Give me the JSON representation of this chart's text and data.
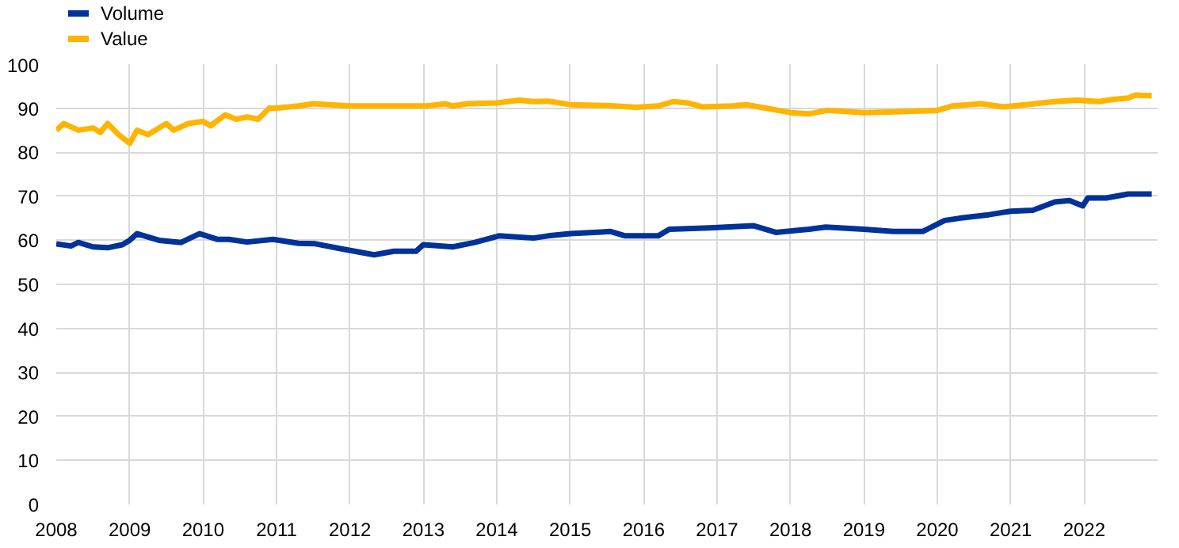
{
  "chart_data": {
    "type": "line",
    "xlim": [
      2008,
      2023
    ],
    "xticks": [
      2008,
      2009,
      2010,
      2011,
      2012,
      2013,
      2014,
      2015,
      2016,
      2017,
      2018,
      2019,
      2020,
      2021,
      2022
    ],
    "ylim": [
      0,
      100
    ],
    "yticks": [
      0,
      10,
      20,
      30,
      40,
      50,
      60,
      70,
      80,
      90,
      100
    ],
    "grid": true,
    "legend": "top left",
    "line_style": "solid",
    "series": [
      {
        "name": "Volume",
        "color": "#003299",
        "x": [
          2008,
          2008.2,
          2008.3,
          2008.5,
          2008.7,
          2008.9,
          2009.0,
          2009.1,
          2009.4,
          2009.7,
          2009.95,
          2010.2,
          2010.35,
          2010.6,
          2010.95,
          2011.3,
          2011.53,
          2011.9,
          2012.33,
          2012.6,
          2012.9,
          2013.0,
          2013.4,
          2013.7,
          2014.03,
          2014.5,
          2014.7,
          2015.0,
          2015.55,
          2015.75,
          2016.2,
          2016.35,
          2016.9,
          2017.5,
          2017.8,
          2018.25,
          2018.48,
          2019.0,
          2019.4,
          2019.8,
          2020.1,
          2020.3,
          2020.7,
          2021.0,
          2021.3,
          2021.6,
          2021.8,
          2021.98,
          2022.05,
          2022.3,
          2022.6,
          2022.92
        ],
        "values": [
          59.2,
          58.7,
          59.5,
          58.5,
          58.3,
          59,
          60,
          61.5,
          60,
          59.5,
          61.5,
          60.2,
          60.2,
          59.6,
          60.2,
          59.3,
          59.2,
          58,
          56.7,
          57.5,
          57.5,
          59,
          58.5,
          59.5,
          61,
          60.5,
          61,
          61.5,
          62,
          61,
          61,
          62.5,
          62.8,
          63.3,
          61.8,
          62.5,
          63,
          62.5,
          62,
          62,
          64.5,
          65,
          65.8,
          66.6,
          66.8,
          68.7,
          69,
          67.8,
          69.6,
          69.6,
          70.5,
          70.5
        ]
      },
      {
        "name": "Value",
        "color": "#ffb400",
        "x": [
          2008,
          2008.1,
          2008.3,
          2008.5,
          2008.6,
          2008.7,
          2008.85,
          2009.0,
          2009.1,
          2009.25,
          2009.5,
          2009.6,
          2009.8,
          2010.0,
          2010.1,
          2010.3,
          2010.45,
          2010.6,
          2010.75,
          2010.9,
          2011.0,
          2011.3,
          2011.5,
          2012.0,
          2012.5,
          2013.05,
          2013.3,
          2013.4,
          2013.6,
          2014.0,
          2014.3,
          2014.5,
          2014.7,
          2015.0,
          2015.5,
          2015.9,
          2016.2,
          2016.4,
          2016.6,
          2016.8,
          2017.2,
          2017.4,
          2017.6,
          2018.0,
          2018.25,
          2018.5,
          2019.0,
          2019.5,
          2020.0,
          2020.2,
          2020.6,
          2020.9,
          2021.2,
          2021.6,
          2021.9,
          2022.2,
          2022.4,
          2022.6,
          2022.7,
          2022.92
        ],
        "values": [
          85,
          86.5,
          85,
          85.5,
          84.5,
          86.5,
          84,
          82,
          85,
          84,
          86.5,
          85,
          86.5,
          87,
          86,
          88.5,
          87.5,
          88,
          87.5,
          90,
          90,
          90.5,
          91,
          90.5,
          90.5,
          90.5,
          91,
          90.5,
          91,
          91.2,
          91.8,
          91.5,
          91.6,
          90.8,
          90.6,
          90.2,
          90.5,
          91.5,
          91.2,
          90.3,
          90.5,
          90.8,
          90.2,
          89,
          88.7,
          89.5,
          89,
          89.2,
          89.5,
          90.5,
          91,
          90.3,
          90.8,
          91.5,
          91.8,
          91.5,
          92,
          92.3,
          93,
          92.8
        ]
      }
    ]
  }
}
